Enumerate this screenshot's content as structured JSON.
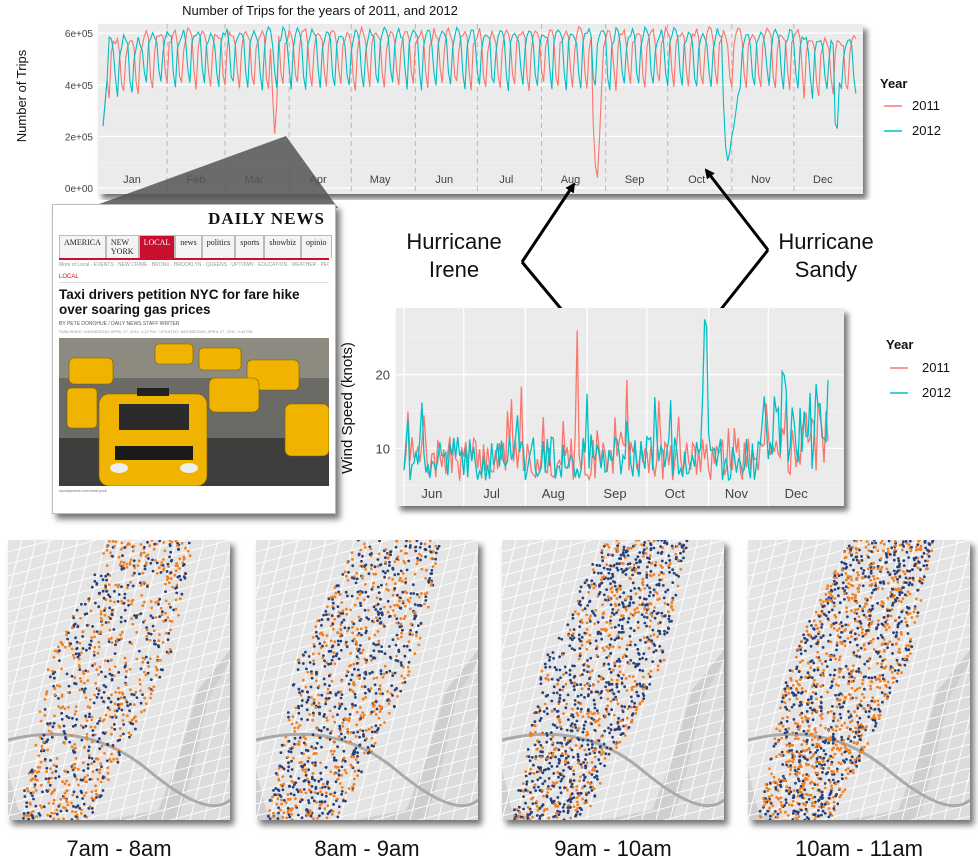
{
  "chart_data": [
    {
      "type": "line",
      "title": "Number of Trips for the years of 2011, and 2012",
      "ylabel": "Number of Trips",
      "xlabel": "",
      "ylim": [
        0,
        620000
      ],
      "yticks": [
        0,
        200000,
        400000,
        600000
      ],
      "ytick_labels": [
        "0e+00",
        "2e+05",
        "4e+05",
        "6e+05"
      ],
      "x_tick_labels": [
        "Jan",
        "Feb",
        "Mar",
        "Apr",
        "May",
        "Jun",
        "Jul",
        "Aug",
        "Sep",
        "Oct",
        "Nov",
        "Dec"
      ],
      "x_tick_days": [
        15,
        46,
        74,
        105,
        135,
        166,
        196,
        227,
        258,
        288,
        319,
        349
      ],
      "xlim": [
        1,
        366
      ],
      "grid": true,
      "legend": {
        "title": "Year",
        "position": "right",
        "labels": [
          "2011",
          "2012"
        ]
      },
      "series": [
        {
          "name": "2011",
          "color": "#f8766d"
        },
        {
          "name": "2012",
          "color": "#00bfc4"
        }
      ],
      "annotations": [
        {
          "label": "2011 dip Mar",
          "day": 84,
          "value": 210000
        },
        {
          "label": "2011 Irene Aug",
          "day": 240,
          "value": 40000
        },
        {
          "label": "2012 Sandy Oct",
          "day": 303,
          "value": 105000
        }
      ]
    },
    {
      "type": "line",
      "title": "",
      "ylabel": "Wind Speed (knots)",
      "xlabel": "",
      "ylim": [
        3,
        28.5
      ],
      "yticks": [
        10,
        20
      ],
      "ytick_labels": [
        "10",
        "20"
      ],
      "x_tick_labels": [
        "Jun",
        "Jul",
        "Aug",
        "Sep",
        "Oct",
        "Nov",
        "Dec"
      ],
      "x_tick_days": [
        166,
        196,
        227,
        258,
        288,
        319,
        349
      ],
      "xlim": [
        151,
        366
      ],
      "grid": true,
      "legend": {
        "title": "Year",
        "position": "right",
        "labels": [
          "2011",
          "2012"
        ]
      },
      "series": [
        {
          "name": "2011",
          "color": "#f8766d"
        },
        {
          "name": "2012",
          "color": "#00bfc4"
        }
      ],
      "annotations": [
        {
          "label": "Irene peak",
          "day": 239,
          "value": 26
        },
        {
          "label": "Sandy peak",
          "day": 303,
          "value": 27.5
        }
      ]
    }
  ],
  "annotations": {
    "irene": {
      "line1": "Hurricane",
      "line2": "Irene"
    },
    "sandy": {
      "line1": "Hurricane",
      "line2": "Sandy"
    }
  },
  "news": {
    "brand": "DAILY NEWS",
    "nav": [
      "AMERICA",
      "NEW YORK",
      "LOCAL",
      "news",
      "politics",
      "sports",
      "showbiz",
      "opinio"
    ],
    "active_nav": "LOCAL",
    "subnav": "More of Local · EVENTS · NEW CRIME · BRONX · BROOKLYN · QUEENS · UPTOWN · EDUCATION · WEATHER · PEOPLE",
    "section": "LOCAL",
    "headline": "Taxi drivers petition NYC for fare hike over soaring gas prices",
    "byline": "BY PETE DONOHUE / DAILY NEWS STAFF WRITER",
    "meta": "PUBLISHED: WEDNESDAY, APRIL 27, 2011, 3:22 PM · UPDATED: WEDNESDAY, APRIL 27, 2011, 3:44 PM",
    "credit": "nydailynews.com/new-york"
  },
  "maps": [
    {
      "label": "7am - 8am"
    },
    {
      "label": "8am - 9am"
    },
    {
      "label": "9am - 10am"
    },
    {
      "label": "10am - 11am"
    }
  ],
  "colors": {
    "dot_orange": "#f28020",
    "dot_navy": "#27407a",
    "panel_bg": "#ebebeb"
  }
}
